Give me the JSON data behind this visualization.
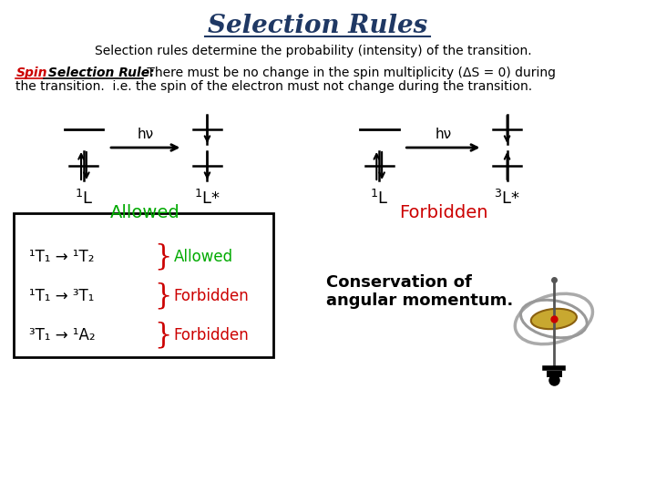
{
  "title": "Selection Rules",
  "title_color": "#1f3864",
  "subtitle": "Selection rules determine the probability (intensity) of the transition.",
  "allowed_label": "Allowed",
  "forbidden_label": "Forbidden",
  "allowed_color": "#00aa00",
  "forbidden_color": "#cc0000",
  "box_reactions": [
    {
      "text": "¹T₁ → ¹T₂",
      "label": "Allowed",
      "color": "#00aa00"
    },
    {
      "text": "¹T₁ → ³T₁",
      "label": "Forbidden",
      "color": "#cc0000"
    },
    {
      "text": "³T₁ → ¹A₂",
      "label": "Forbidden",
      "color": "#cc0000"
    }
  ],
  "conservation_text": "Conservation of\nangular momentum.",
  "hv_label": "hν",
  "background_color": "#ffffff"
}
